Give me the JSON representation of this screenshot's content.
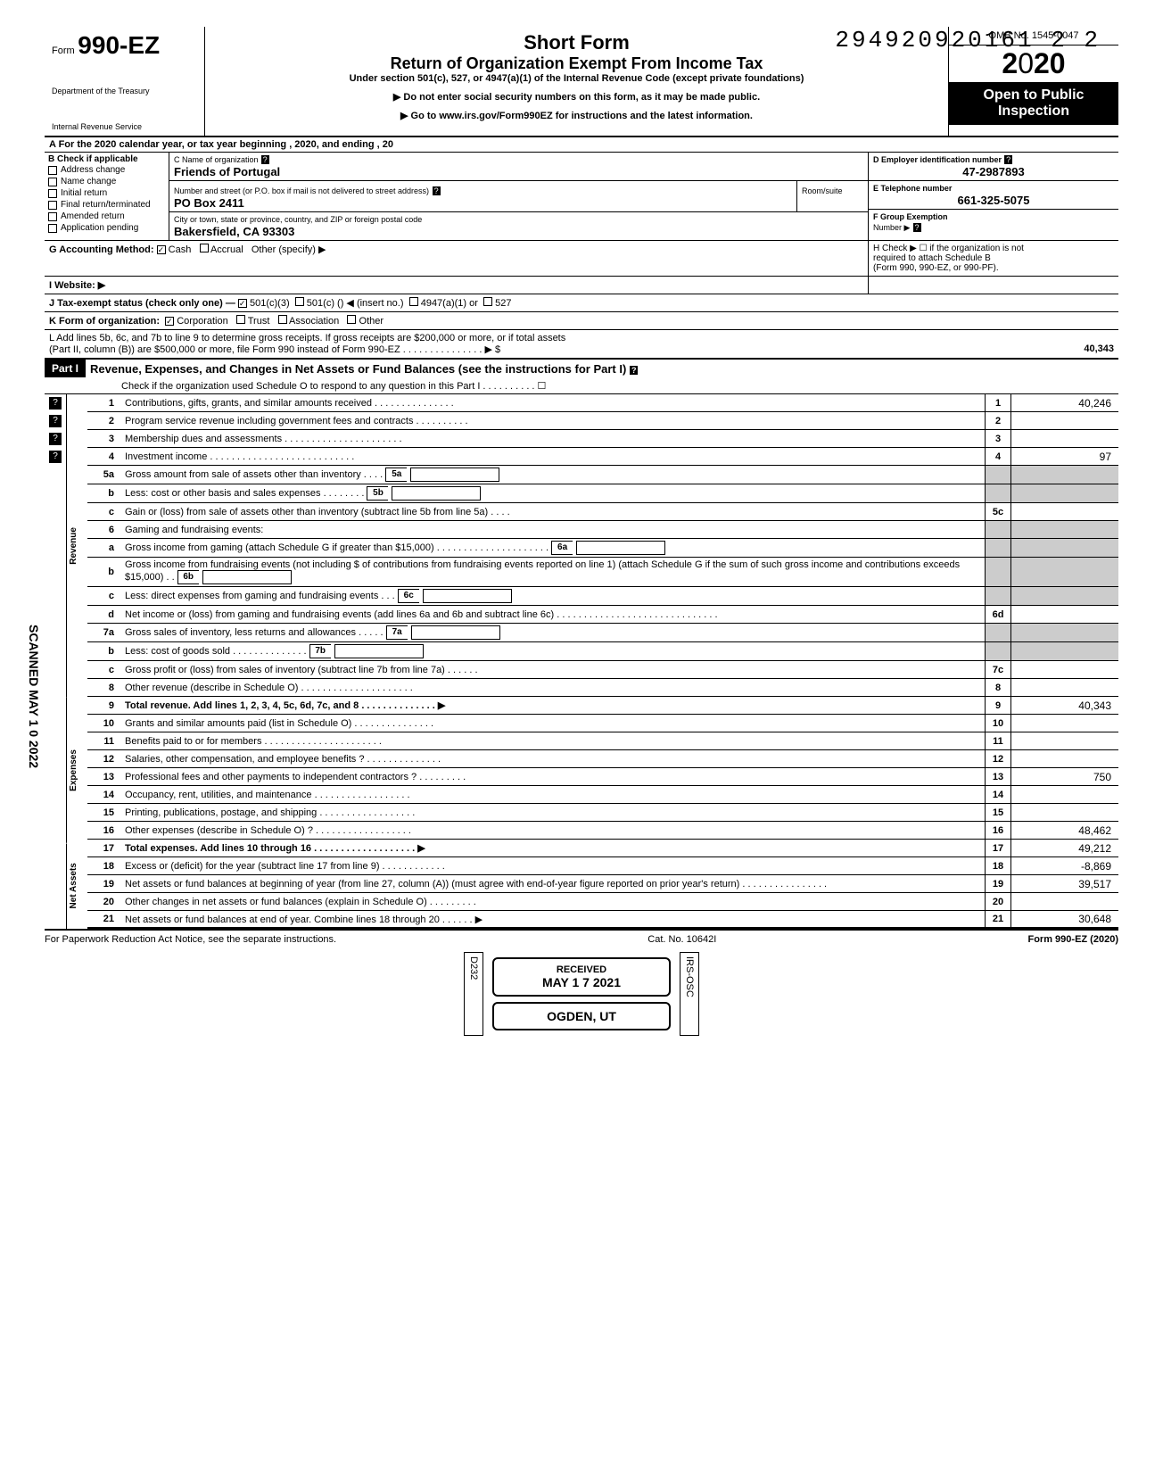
{
  "dln": "294920920161 2  2",
  "header": {
    "form_prefix": "Form",
    "form_number": "990-EZ",
    "dept1": "Department of the Treasury",
    "dept2": "Internal Revenue Service",
    "short_form": "Short Form",
    "title": "Return of Organization Exempt From Income Tax",
    "under": "Under section 501(c), 527, or 4947(a)(1) of the Internal Revenue Code (except private foundations)",
    "ssn_warn": "▶ Do not enter social security numbers on this form, as it may be made public.",
    "goto": "▶ Go to www.irs.gov/Form990EZ for instructions and the latest information.",
    "omb": "OMB No. 1545-0047",
    "year": "2020",
    "open1": "Open to Public",
    "open2": "Inspection"
  },
  "row_a": "A For the 2020 calendar year, or tax year beginning                                                              , 2020, and ending                                              , 20",
  "section_b": {
    "heading": "B Check if applicable",
    "opts": [
      "Address change",
      "Name change",
      "Initial return",
      "Final return/terminated",
      "Amended return",
      "Application pending"
    ]
  },
  "section_c": {
    "label": "C Name of organization",
    "name": "Friends of Portugal",
    "addr_label": "Number and street (or P.O. box if mail is not delivered to street address)",
    "room_label": "Room/suite",
    "addr": "PO Box 2411",
    "city_label": "City or town, state or province, country, and ZIP or foreign postal code",
    "city": "Bakersfield, CA 93303"
  },
  "section_d": {
    "label": "D Employer identification number",
    "ein": "47-2987893",
    "e_label": "E Telephone number",
    "phone": "661-325-5075",
    "f_label": "F Group Exemption",
    "f_label2": "Number ▶"
  },
  "row_g": {
    "label": "G Accounting Method:",
    "cash": "Cash",
    "accrual": "Accrual",
    "other": "Other (specify) ▶"
  },
  "row_h": {
    "text": "H Check ▶ ☐ if the organization is not",
    "text2": "required to attach Schedule B",
    "text3": "(Form 990, 990-EZ, or 990-PF)."
  },
  "row_i": "I  Website: ▶",
  "row_j": {
    "label": "J Tax-exempt status (check only one) —",
    "o1": "501(c)(3)",
    "o2": "501(c) (",
    "o2b": ") ◀ (insert no.)",
    "o3": "4947(a)(1) or",
    "o4": "527"
  },
  "row_k": {
    "label": "K Form of organization:",
    "o1": "Corporation",
    "o2": "Trust",
    "o3": "Association",
    "o4": "Other"
  },
  "row_l": {
    "text": "L Add lines 5b, 6c, and 7b to line 9 to determine gross receipts. If gross receipts are $200,000 or more, or if total assets",
    "text2": "(Part II, column (B)) are $500,000 or more, file Form 990 instead of Form 990-EZ . . . . . . . . . . . . . . . ▶  $",
    "val": "40,343"
  },
  "part1": {
    "label": "Part I",
    "title": "Revenue, Expenses, and Changes in Net Assets or Fund Balances (see the instructions for Part I)",
    "check": "Check if the organization used Schedule O to respond to any question in this Part I . . . . . . . . . . ☐"
  },
  "lines": {
    "l1": {
      "n": "1",
      "d": "Contributions, gifts, grants, and similar amounts received . . . . . . . . . . . . . . .",
      "b": "1",
      "v": "40,246"
    },
    "l2": {
      "n": "2",
      "d": "Program service revenue including government fees and contracts  . . . . . . . . . .",
      "b": "2",
      "v": ""
    },
    "l3": {
      "n": "3",
      "d": "Membership dues and assessments . . . . . . . . . . . . . . . . . . . . . .",
      "b": "3",
      "v": ""
    },
    "l4": {
      "n": "4",
      "d": "Investment income   . . . . . . . . . . . . . . . . . . . . . . . . . . .",
      "b": "4",
      "v": "97"
    },
    "l5a": {
      "n": "5a",
      "d": "Gross amount from sale of assets other than inventory  . . . .",
      "sb": "5a"
    },
    "l5b": {
      "n": "b",
      "d": "Less: cost or other basis and sales expenses . . . . . . . .",
      "sb": "5b"
    },
    "l5c": {
      "n": "c",
      "d": "Gain or (loss) from sale of assets other than inventory (subtract line 5b from line 5a) . . . .",
      "b": "5c",
      "v": ""
    },
    "l6": {
      "n": "6",
      "d": "Gaming and fundraising events:"
    },
    "l6a": {
      "n": "a",
      "d": "Gross income from gaming (attach Schedule G if greater than $15,000) . . . . . . . . . . . . . . . . . . . . .",
      "sb": "6a"
    },
    "l6b": {
      "n": "b",
      "d": "Gross income from fundraising events (not including  $                          of contributions from fundraising events reported on line 1) (attach Schedule G if the sum of such gross income and contributions exceeds $15,000) . .",
      "sb": "6b"
    },
    "l6c": {
      "n": "c",
      "d": "Less: direct expenses from gaming and fundraising events  . . .",
      "sb": "6c"
    },
    "l6d": {
      "n": "d",
      "d": "Net income or (loss) from gaming and fundraising events (add lines 6a and 6b and subtract line 6c)  . . . . . . . . . . . . . . . . . . . . . . . . . . . . . .",
      "b": "6d",
      "v": ""
    },
    "l7a": {
      "n": "7a",
      "d": "Gross sales of inventory, less returns and allowances  . . . . .",
      "sb": "7a"
    },
    "l7b": {
      "n": "b",
      "d": "Less: cost of goods sold     . . . . . . . . . . . . . .",
      "sb": "7b"
    },
    "l7c": {
      "n": "c",
      "d": "Gross profit or (loss) from sales of inventory (subtract line 7b from line 7a)  . . . . . .",
      "b": "7c",
      "v": ""
    },
    "l8": {
      "n": "8",
      "d": "Other revenue (describe in Schedule O) . . . . . . . . . . . . . . . . . . . . .",
      "b": "8",
      "v": ""
    },
    "l9": {
      "n": "9",
      "d": "Total revenue. Add lines 1, 2, 3, 4, 5c, 6d, 7c, and 8  . . . . . . . . . . . . . . ▶",
      "b": "9",
      "v": "40,343"
    },
    "l10": {
      "n": "10",
      "d": "Grants and similar amounts paid (list in Schedule O)  . . . . . . . . . . . . . . .",
      "b": "10",
      "v": ""
    },
    "l11": {
      "n": "11",
      "d": "Benefits paid to or for members  . . . . . . . . . . . . . . . . . . . . . .",
      "b": "11",
      "v": ""
    },
    "l12": {
      "n": "12",
      "d": "Salaries, other compensation, and employee benefits ? . . . . . . . . . . . . . .",
      "b": "12",
      "v": ""
    },
    "l13": {
      "n": "13",
      "d": "Professional fees and other payments to independent contractors ? . . . . . . . . .",
      "b": "13",
      "v": "750"
    },
    "l14": {
      "n": "14",
      "d": "Occupancy, rent, utilities, and maintenance  . . . . . . . . . . . . . . . . . .",
      "b": "14",
      "v": ""
    },
    "l15": {
      "n": "15",
      "d": "Printing, publications, postage, and shipping . . . . . . . . . . . . . . . . . .",
      "b": "15",
      "v": ""
    },
    "l16": {
      "n": "16",
      "d": "Other expenses (describe in Schedule O) ? . . . . . . . . . . . . . . . . . .",
      "b": "16",
      "v": "48,462"
    },
    "l17": {
      "n": "17",
      "d": "Total expenses. Add lines 10 through 16 . . . . . . . . . . . . . . . . . . . ▶",
      "b": "17",
      "v": "49,212"
    },
    "l18": {
      "n": "18",
      "d": "Excess or (deficit) for the year (subtract line 17 from line 9)  . . . . . . . . . . . .",
      "b": "18",
      "v": "-8,869"
    },
    "l19": {
      "n": "19",
      "d": "Net assets or fund balances at beginning of year (from line 27, column (A)) (must agree with end-of-year figure reported on prior year's return)  . . . . . . . . . . . . . . . .",
      "b": "19",
      "v": "39,517"
    },
    "l20": {
      "n": "20",
      "d": "Other changes in net assets or fund balances (explain in Schedule O) . . . . . . . . .",
      "b": "20",
      "v": ""
    },
    "l21": {
      "n": "21",
      "d": "Net assets or fund balances at end of year. Combine lines 18 through 20 . . . . . . ▶",
      "b": "21",
      "v": "30,648"
    }
  },
  "side_labels": {
    "rev": "Revenue",
    "exp": "Expenses",
    "na": "Net Assets"
  },
  "footer": {
    "left": "For Paperwork Reduction Act Notice, see the separate instructions.",
    "mid": "Cat. No. 10642I",
    "right": "Form 990-EZ (2020)"
  },
  "stamps": {
    "received": "RECEIVED",
    "date": "MAY 1 7 2021",
    "ogden": "OGDEN, UT",
    "d232": "D232",
    "irs": "IRS-OSC",
    "scanned": "SCANNED MAY 1 0 2022"
  },
  "colors": {
    "black": "#000000",
    "white": "#ffffff",
    "shade": "#cccccc"
  }
}
